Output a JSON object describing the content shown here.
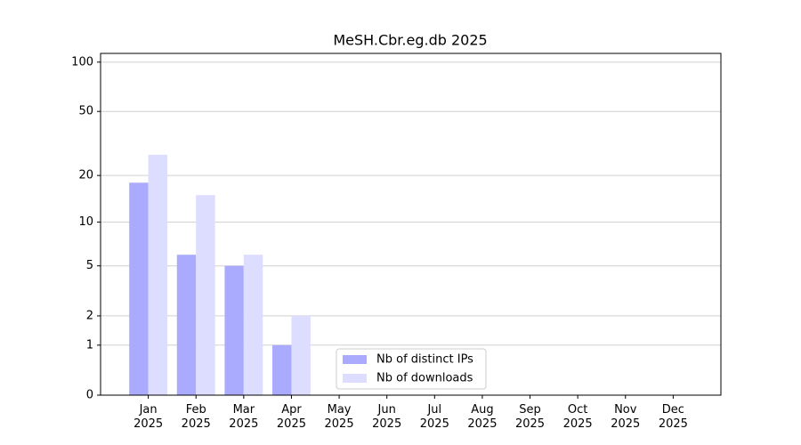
{
  "chart_data": {
    "type": "bar",
    "title": "MeSH.Cbr.eg.db 2025",
    "categories": [
      "Jan\n2025",
      "Feb\n2025",
      "Mar\n2025",
      "Apr\n2025",
      "May\n2025",
      "Jun\n2025",
      "Jul\n2025",
      "Aug\n2025",
      "Sep\n2025",
      "Oct\n2025",
      "Nov\n2025",
      "Dec\n2025"
    ],
    "series": [
      {
        "name": "Nb of distinct IPs",
        "color": "#aaaaff",
        "values": [
          18,
          6,
          5,
          1,
          0,
          0,
          0,
          0,
          0,
          0,
          0,
          0
        ]
      },
      {
        "name": "Nb of downloads",
        "color": "#ddddff",
        "values": [
          27,
          15,
          6,
          2,
          0,
          0,
          0,
          0,
          0,
          0,
          0,
          0
        ]
      }
    ],
    "y_scale": "log1p",
    "ylim": [
      0,
      113
    ],
    "yticks": [
      0,
      1,
      2,
      5,
      10,
      20,
      50,
      100
    ],
    "grid": true,
    "legend": "lower center"
  }
}
